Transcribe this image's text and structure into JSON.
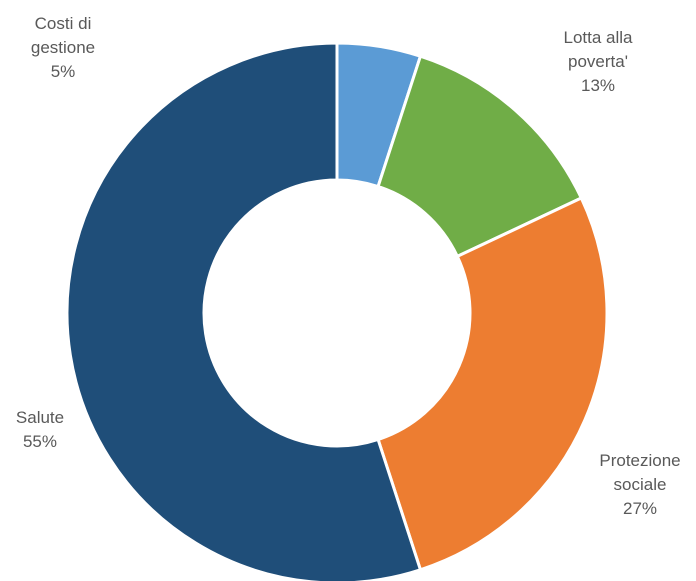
{
  "chart_data": {
    "type": "donut",
    "categories": [
      "Costi di\ngestione",
      "Lotta alla\npoverta'",
      "Protezione\nsociale",
      "Salute"
    ],
    "values": [
      5,
      13,
      27,
      55
    ],
    "value_labels": [
      "5%",
      "13%",
      "27%",
      "55%"
    ],
    "colors": [
      "#5b9bd5",
      "#70ad47",
      "#ed7d31",
      "#1f4e79"
    ]
  }
}
